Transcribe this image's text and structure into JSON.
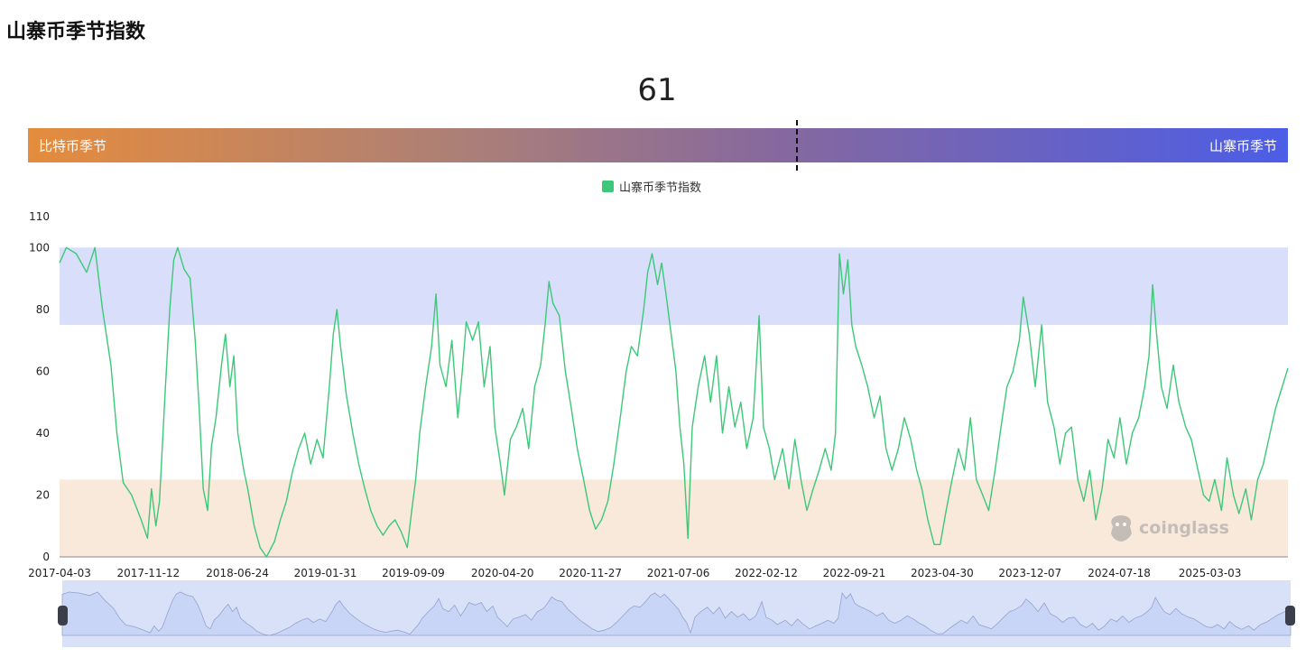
{
  "page": {
    "title": "山寨币季节指数"
  },
  "gauge": {
    "value": "61",
    "value_fraction": 0.61,
    "left_label": "比特币季节",
    "right_label": "山寨币季节"
  },
  "legend": {
    "label": "山寨币季节指数",
    "color": "#3cc878"
  },
  "watermark": {
    "text": "coinglass",
    "icon": "coinglass-logo-icon"
  },
  "zoom_slider": {
    "start_fraction": 0,
    "end_fraction": 1
  },
  "chart_data": {
    "type": "line",
    "ylim": [
      0,
      110
    ],
    "y_ticks": [
      0,
      20,
      40,
      60,
      80,
      100,
      110
    ],
    "x_tick_labels": [
      "2017-04-03",
      "2017-11-12",
      "2018-06-24",
      "2019-01-31",
      "2019-09-09",
      "2020-04-20",
      "2020-11-27",
      "2021-07-06",
      "2022-02-12",
      "2022-09-21",
      "2023-04-30",
      "2023-12-07",
      "2024-07-18",
      "2025-03-03"
    ],
    "x_range": [
      "2017-04-03",
      "2025-09-15"
    ],
    "bands": [
      {
        "name": "altcoin-season-band",
        "from": 75,
        "to": 100,
        "color": "#d9dffa"
      },
      {
        "name": "bitcoin-season-band",
        "from": 0,
        "to": 25,
        "color": "#f9e9db"
      }
    ],
    "grid": false,
    "series": [
      {
        "name": "山寨币季节指数",
        "color": "#3cc878",
        "points": [
          [
            "2017-04-03",
            95
          ],
          [
            "2017-04-20",
            100
          ],
          [
            "2017-05-15",
            98
          ],
          [
            "2017-06-10",
            92
          ],
          [
            "2017-07-01",
            100
          ],
          [
            "2017-07-20",
            80
          ],
          [
            "2017-08-10",
            62
          ],
          [
            "2017-08-25",
            40
          ],
          [
            "2017-09-10",
            24
          ],
          [
            "2017-10-01",
            20
          ],
          [
            "2017-10-25",
            12
          ],
          [
            "2017-11-10",
            6
          ],
          [
            "2017-11-20",
            22
          ],
          [
            "2017-12-01",
            10
          ],
          [
            "2017-12-10",
            18
          ],
          [
            "2017-12-25",
            55
          ],
          [
            "2018-01-05",
            80
          ],
          [
            "2018-01-15",
            96
          ],
          [
            "2018-01-25",
            100
          ],
          [
            "2018-02-10",
            93
          ],
          [
            "2018-02-25",
            90
          ],
          [
            "2018-03-10",
            70
          ],
          [
            "2018-03-20",
            48
          ],
          [
            "2018-03-30",
            22
          ],
          [
            "2018-04-10",
            15
          ],
          [
            "2018-04-20",
            36
          ],
          [
            "2018-05-01",
            45
          ],
          [
            "2018-05-15",
            62
          ],
          [
            "2018-05-25",
            72
          ],
          [
            "2018-06-05",
            55
          ],
          [
            "2018-06-15",
            65
          ],
          [
            "2018-06-25",
            40
          ],
          [
            "2018-07-10",
            28
          ],
          [
            "2018-07-20",
            22
          ],
          [
            "2018-08-05",
            10
          ],
          [
            "2018-08-20",
            3
          ],
          [
            "2018-09-05",
            0
          ],
          [
            "2018-09-25",
            5
          ],
          [
            "2018-10-10",
            12
          ],
          [
            "2018-10-25",
            18
          ],
          [
            "2018-11-10",
            28
          ],
          [
            "2018-11-25",
            35
          ],
          [
            "2018-12-10",
            40
          ],
          [
            "2018-12-25",
            30
          ],
          [
            "2019-01-10",
            38
          ],
          [
            "2019-01-25",
            32
          ],
          [
            "2019-02-10",
            55
          ],
          [
            "2019-02-20",
            72
          ],
          [
            "2019-03-01",
            80
          ],
          [
            "2019-03-10",
            68
          ],
          [
            "2019-03-25",
            52
          ],
          [
            "2019-04-10",
            40
          ],
          [
            "2019-04-25",
            30
          ],
          [
            "2019-05-10",
            22
          ],
          [
            "2019-05-25",
            15
          ],
          [
            "2019-06-10",
            10
          ],
          [
            "2019-06-25",
            7
          ],
          [
            "2019-07-10",
            10
          ],
          [
            "2019-07-25",
            12
          ],
          [
            "2019-08-10",
            8
          ],
          [
            "2019-08-25",
            3
          ],
          [
            "2019-09-05",
            15
          ],
          [
            "2019-09-15",
            25
          ],
          [
            "2019-09-25",
            40
          ],
          [
            "2019-10-10",
            55
          ],
          [
            "2019-10-25",
            68
          ],
          [
            "2019-11-05",
            85
          ],
          [
            "2019-11-15",
            62
          ],
          [
            "2019-11-30",
            55
          ],
          [
            "2019-12-15",
            70
          ],
          [
            "2019-12-30",
            45
          ],
          [
            "2020-01-10",
            60
          ],
          [
            "2020-01-20",
            76
          ],
          [
            "2020-02-05",
            70
          ],
          [
            "2020-02-20",
            76
          ],
          [
            "2020-03-05",
            55
          ],
          [
            "2020-03-20",
            68
          ],
          [
            "2020-04-01",
            42
          ],
          [
            "2020-04-15",
            30
          ],
          [
            "2020-04-25",
            20
          ],
          [
            "2020-05-10",
            38
          ],
          [
            "2020-05-25",
            42
          ],
          [
            "2020-06-10",
            48
          ],
          [
            "2020-06-25",
            35
          ],
          [
            "2020-07-10",
            55
          ],
          [
            "2020-07-25",
            62
          ],
          [
            "2020-08-05",
            75
          ],
          [
            "2020-08-15",
            89
          ],
          [
            "2020-08-25",
            82
          ],
          [
            "2020-09-10",
            78
          ],
          [
            "2020-09-25",
            60
          ],
          [
            "2020-10-10",
            48
          ],
          [
            "2020-10-25",
            35
          ],
          [
            "2020-11-10",
            25
          ],
          [
            "2020-11-25",
            15
          ],
          [
            "2020-12-10",
            9
          ],
          [
            "2020-12-25",
            12
          ],
          [
            "2021-01-10",
            18
          ],
          [
            "2021-01-25",
            30
          ],
          [
            "2021-02-10",
            45
          ],
          [
            "2021-02-25",
            60
          ],
          [
            "2021-03-10",
            68
          ],
          [
            "2021-03-25",
            65
          ],
          [
            "2021-04-10",
            80
          ],
          [
            "2021-04-20",
            92
          ],
          [
            "2021-05-01",
            98
          ],
          [
            "2021-05-15",
            88
          ],
          [
            "2021-05-25",
            95
          ],
          [
            "2021-06-05",
            85
          ],
          [
            "2021-06-15",
            75
          ],
          [
            "2021-06-30",
            60
          ],
          [
            "2021-07-10",
            42
          ],
          [
            "2021-07-20",
            30
          ],
          [
            "2021-07-30",
            6
          ],
          [
            "2021-08-10",
            42
          ],
          [
            "2021-08-25",
            55
          ],
          [
            "2021-09-10",
            65
          ],
          [
            "2021-09-25",
            50
          ],
          [
            "2021-10-10",
            65
          ],
          [
            "2021-10-25",
            40
          ],
          [
            "2021-11-10",
            55
          ],
          [
            "2021-11-25",
            42
          ],
          [
            "2021-12-10",
            50
          ],
          [
            "2021-12-25",
            35
          ],
          [
            "2022-01-10",
            45
          ],
          [
            "2022-01-25",
            78
          ],
          [
            "2022-02-05",
            42
          ],
          [
            "2022-02-20",
            35
          ],
          [
            "2022-03-05",
            25
          ],
          [
            "2022-03-25",
            35
          ],
          [
            "2022-04-10",
            22
          ],
          [
            "2022-04-25",
            38
          ],
          [
            "2022-05-10",
            25
          ],
          [
            "2022-05-25",
            15
          ],
          [
            "2022-06-10",
            22
          ],
          [
            "2022-06-25",
            28
          ],
          [
            "2022-07-10",
            35
          ],
          [
            "2022-07-25",
            28
          ],
          [
            "2022-08-05",
            40
          ],
          [
            "2022-08-15",
            98
          ],
          [
            "2022-08-25",
            85
          ],
          [
            "2022-09-05",
            96
          ],
          [
            "2022-09-15",
            75
          ],
          [
            "2022-09-25",
            68
          ],
          [
            "2022-10-10",
            62
          ],
          [
            "2022-10-25",
            55
          ],
          [
            "2022-11-10",
            45
          ],
          [
            "2022-11-25",
            52
          ],
          [
            "2022-12-10",
            35
          ],
          [
            "2022-12-25",
            28
          ],
          [
            "2023-01-10",
            35
          ],
          [
            "2023-01-25",
            45
          ],
          [
            "2023-02-10",
            38
          ],
          [
            "2023-02-25",
            28
          ],
          [
            "2023-03-10",
            22
          ],
          [
            "2023-03-25",
            12
          ],
          [
            "2023-04-10",
            4
          ],
          [
            "2023-04-25",
            4
          ],
          [
            "2023-05-10",
            15
          ],
          [
            "2023-05-25",
            25
          ],
          [
            "2023-06-10",
            35
          ],
          [
            "2023-06-25",
            28
          ],
          [
            "2023-07-10",
            45
          ],
          [
            "2023-07-25",
            25
          ],
          [
            "2023-08-10",
            20
          ],
          [
            "2023-08-25",
            15
          ],
          [
            "2023-09-10",
            28
          ],
          [
            "2023-09-25",
            42
          ],
          [
            "2023-10-10",
            55
          ],
          [
            "2023-10-25",
            60
          ],
          [
            "2023-11-10",
            70
          ],
          [
            "2023-11-20",
            84
          ],
          [
            "2023-12-05",
            72
          ],
          [
            "2023-12-20",
            55
          ],
          [
            "2024-01-05",
            75
          ],
          [
            "2024-01-20",
            50
          ],
          [
            "2024-02-05",
            42
          ],
          [
            "2024-02-20",
            30
          ],
          [
            "2024-03-05",
            40
          ],
          [
            "2024-03-20",
            42
          ],
          [
            "2024-04-05",
            25
          ],
          [
            "2024-04-20",
            18
          ],
          [
            "2024-05-05",
            28
          ],
          [
            "2024-05-20",
            12
          ],
          [
            "2024-06-05",
            22
          ],
          [
            "2024-06-20",
            38
          ],
          [
            "2024-07-05",
            32
          ],
          [
            "2024-07-20",
            45
          ],
          [
            "2024-08-05",
            30
          ],
          [
            "2024-08-20",
            40
          ],
          [
            "2024-09-05",
            45
          ],
          [
            "2024-09-20",
            55
          ],
          [
            "2024-10-01",
            65
          ],
          [
            "2024-10-10",
            88
          ],
          [
            "2024-10-20",
            72
          ],
          [
            "2024-11-01",
            55
          ],
          [
            "2024-11-15",
            48
          ],
          [
            "2024-12-01",
            62
          ],
          [
            "2024-12-15",
            50
          ],
          [
            "2025-01-01",
            42
          ],
          [
            "2025-01-15",
            38
          ],
          [
            "2025-02-01",
            28
          ],
          [
            "2025-02-15",
            20
          ],
          [
            "2025-03-01",
            18
          ],
          [
            "2025-03-15",
            25
          ],
          [
            "2025-04-01",
            15
          ],
          [
            "2025-04-15",
            32
          ],
          [
            "2025-05-01",
            20
          ],
          [
            "2025-05-15",
            14
          ],
          [
            "2025-06-01",
            22
          ],
          [
            "2025-06-15",
            12
          ],
          [
            "2025-07-01",
            25
          ],
          [
            "2025-07-15",
            30
          ],
          [
            "2025-08-01",
            40
          ],
          [
            "2025-08-15",
            48
          ],
          [
            "2025-09-15",
            61
          ]
        ]
      }
    ]
  }
}
